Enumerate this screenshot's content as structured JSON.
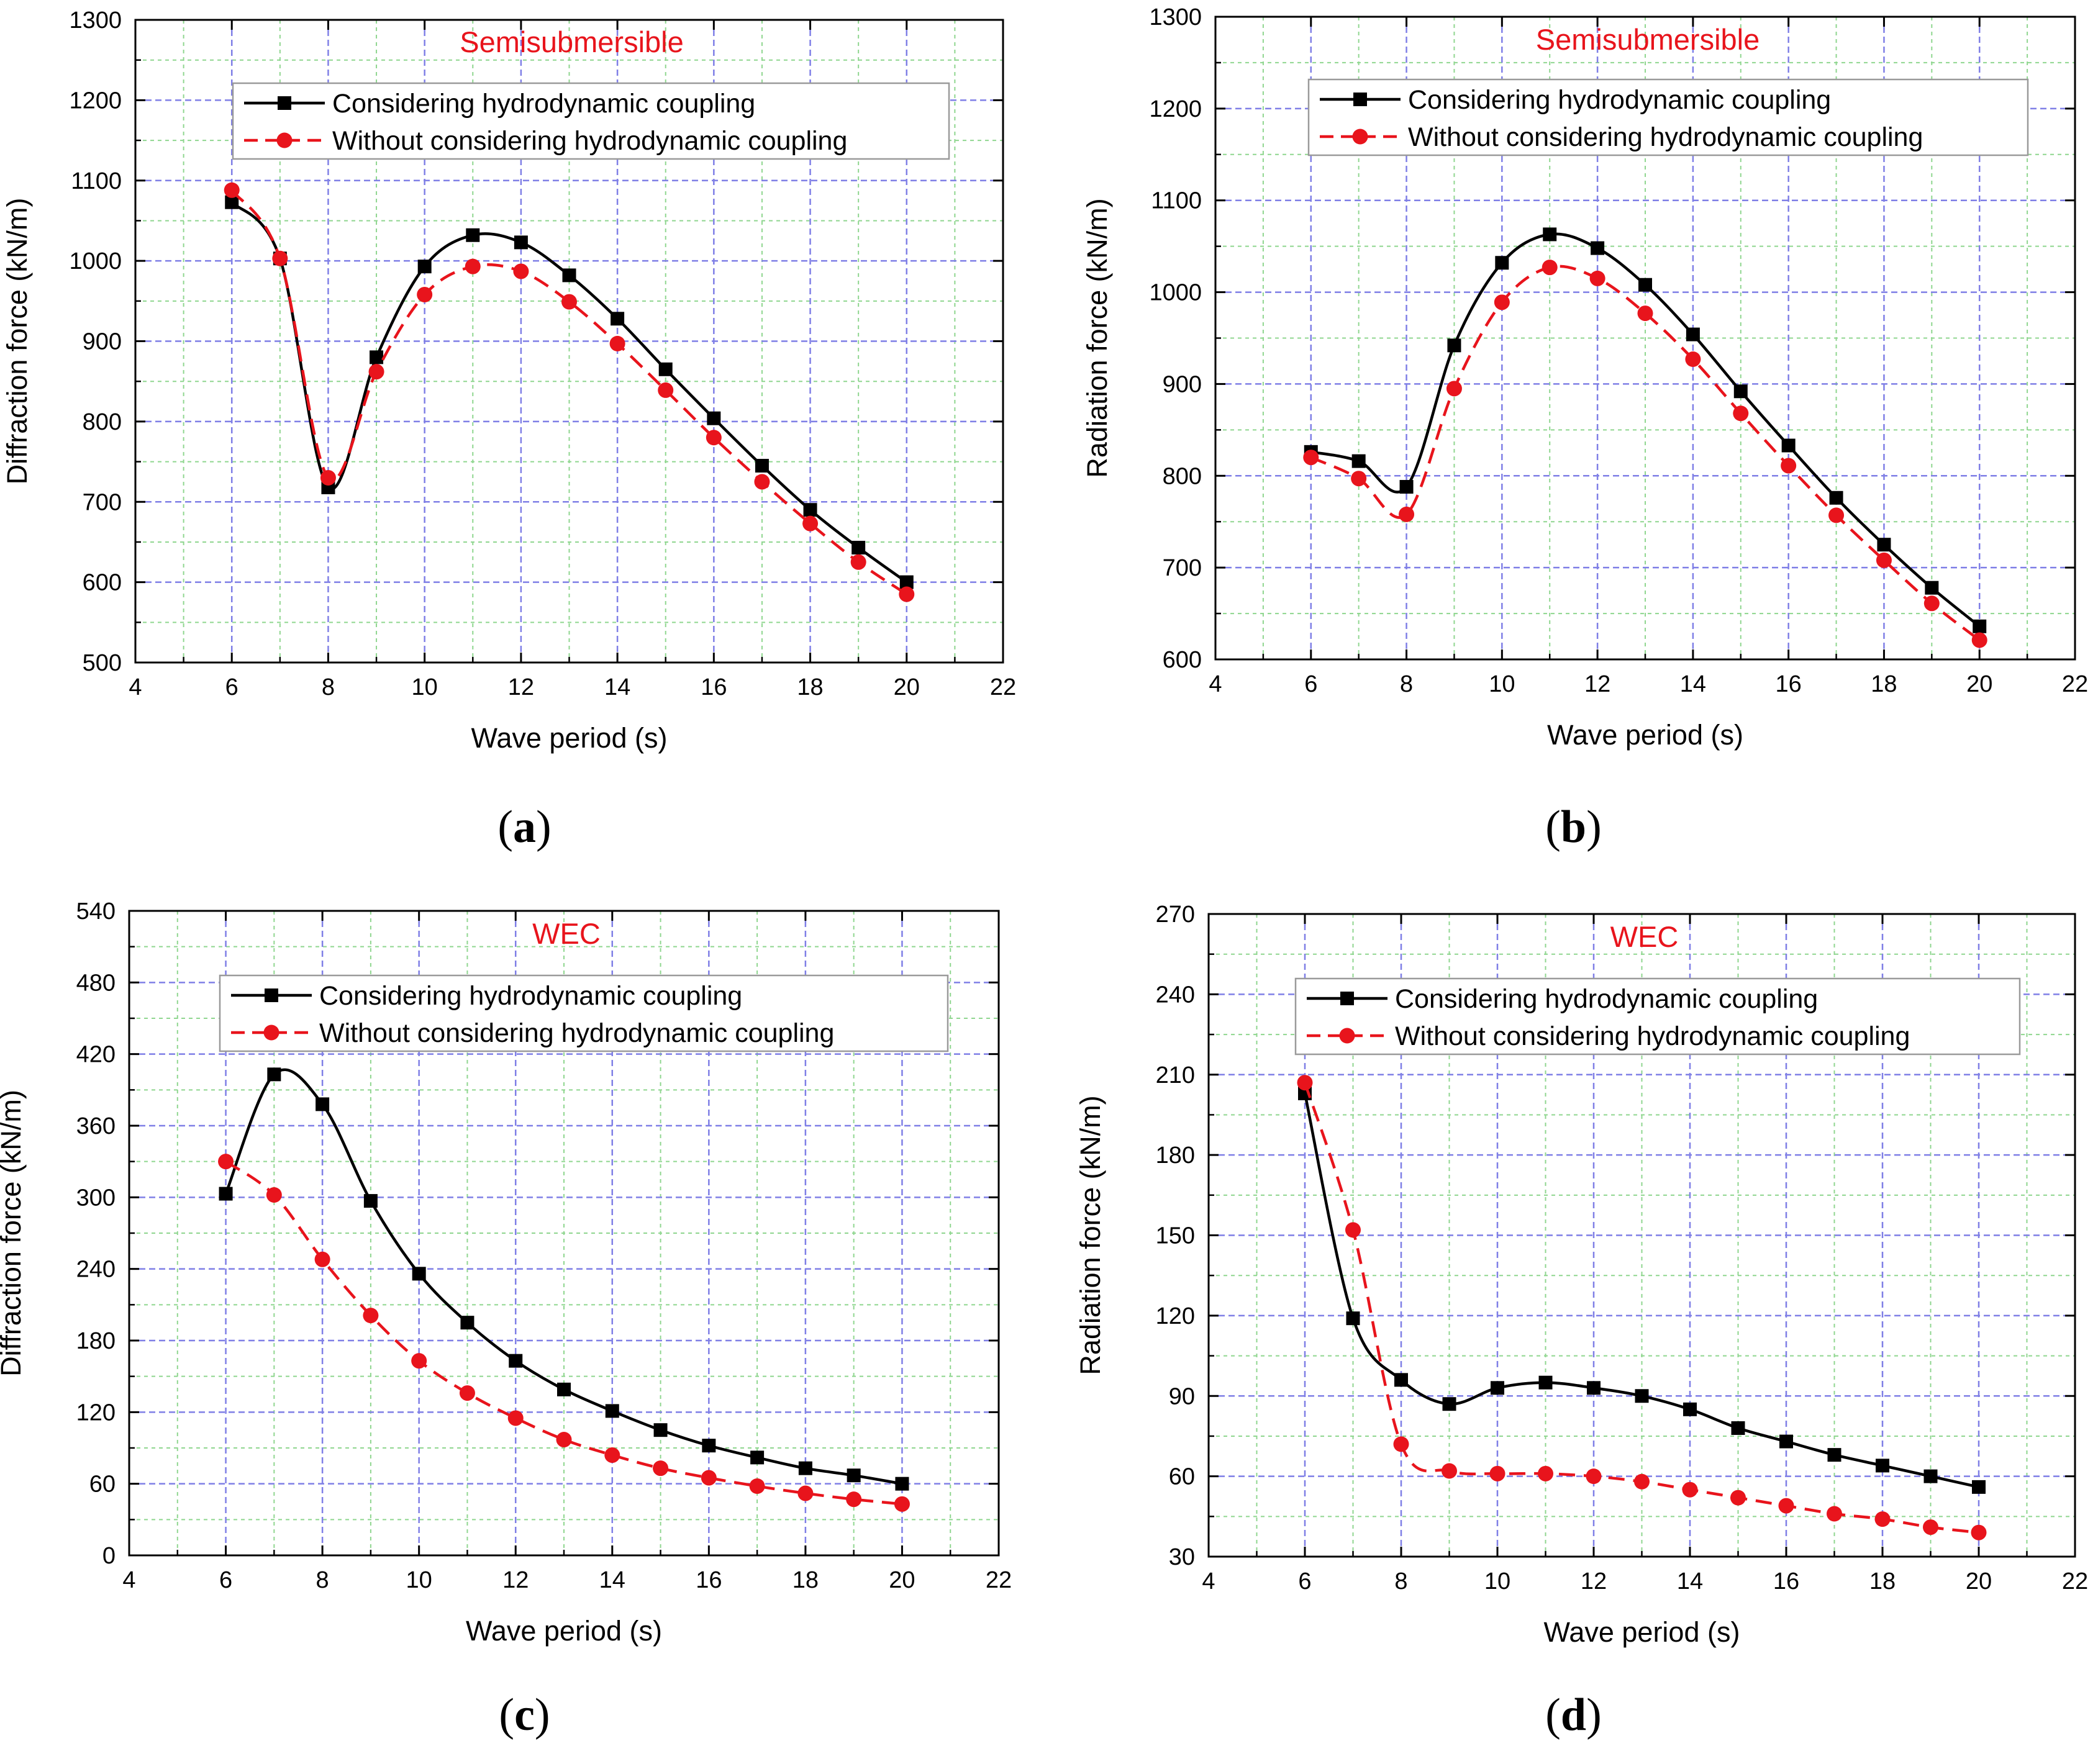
{
  "figure": {
    "background": "#ffffff"
  },
  "colors": {
    "coupled": "#000000",
    "uncoupled": "#e8141c",
    "title": "#e8141c",
    "grid_major": "#7f7fe6",
    "grid_minor": "#8fd68f"
  },
  "chart_data": [
    {
      "id": "a",
      "type": "line",
      "caption_letter": "a",
      "title": "Semisubmersible",
      "xlabel": "Wave period (s)",
      "ylabel": "Diffraction force (kN/m)",
      "xlim": [
        4,
        22
      ],
      "ylim": [
        500,
        1300
      ],
      "xticks": [
        4,
        6,
        8,
        10,
        12,
        14,
        16,
        18,
        20,
        22
      ],
      "yticks": [
        500,
        600,
        700,
        800,
        900,
        1000,
        1100,
        1200,
        1300
      ],
      "grid": true,
      "legend_position": "top",
      "x": [
        6,
        7,
        8,
        9,
        10,
        11,
        12,
        13,
        14,
        15,
        16,
        17,
        18,
        19,
        20
      ],
      "series": [
        {
          "name": "Considering hydrodynamic coupling",
          "marker": "square",
          "line": "solid",
          "color": "#000000",
          "values": [
            1073,
            1003,
            718,
            880,
            993,
            1032,
            1023,
            982,
            928,
            865,
            804,
            745,
            690,
            643,
            600
          ]
        },
        {
          "name": "Without considering hydrodynamic coupling",
          "marker": "circle",
          "line": "dashed",
          "color": "#e8141c",
          "values": [
            1088,
            1003,
            730,
            862,
            958,
            993,
            987,
            949,
            897,
            839,
            780,
            725,
            673,
            625,
            585
          ]
        }
      ]
    },
    {
      "id": "b",
      "type": "line",
      "caption_letter": "b",
      "title": "Semisubmersible",
      "xlabel": "Wave period (s)",
      "ylabel": "Radiation force (kN/m)",
      "xlim": [
        4,
        22
      ],
      "ylim": [
        600,
        1300
      ],
      "xticks": [
        4,
        6,
        8,
        10,
        12,
        14,
        16,
        18,
        20,
        22
      ],
      "yticks": [
        600,
        700,
        800,
        900,
        1000,
        1100,
        1200,
        1300
      ],
      "grid": true,
      "legend_position": "top",
      "x": [
        6,
        7,
        8,
        9,
        10,
        11,
        12,
        13,
        14,
        15,
        16,
        17,
        18,
        19,
        20
      ],
      "series": [
        {
          "name": "Considering hydrodynamic coupling",
          "marker": "square",
          "line": "solid",
          "color": "#000000",
          "values": [
            826,
            816,
            788,
            942,
            1032,
            1063,
            1048,
            1008,
            954,
            892,
            833,
            776,
            725,
            678,
            636
          ]
        },
        {
          "name": "Without considering hydrodynamic coupling",
          "marker": "circle",
          "line": "dashed",
          "color": "#e8141c",
          "values": [
            820,
            797,
            758,
            895,
            989,
            1027,
            1015,
            977,
            927,
            868,
            811,
            757,
            708,
            661,
            621
          ]
        }
      ]
    },
    {
      "id": "c",
      "type": "line",
      "caption_letter": "c",
      "title": "WEC",
      "xlabel": "Wave period (s)",
      "ylabel": "Diffraction force (kN/m)",
      "xlim": [
        4,
        22
      ],
      "ylim": [
        0,
        540
      ],
      "xticks": [
        4,
        6,
        8,
        10,
        12,
        14,
        16,
        18,
        20,
        22
      ],
      "yticks": [
        0,
        60,
        120,
        180,
        240,
        300,
        360,
        420,
        480,
        540
      ],
      "grid": true,
      "legend_position": "top",
      "x": [
        6,
        7,
        8,
        9,
        10,
        11,
        12,
        13,
        14,
        15,
        16,
        17,
        18,
        19,
        20
      ],
      "series": [
        {
          "name": "Considering hydrodynamic coupling",
          "marker": "square",
          "line": "solid",
          "color": "#000000",
          "values": [
            303,
            403,
            378,
            297,
            236,
            195,
            163,
            139,
            121,
            105,
            92,
            82,
            73,
            67,
            60
          ]
        },
        {
          "name": "Without considering hydrodynamic coupling",
          "marker": "circle",
          "line": "dashed",
          "color": "#e8141c",
          "values": [
            330,
            302,
            248,
            201,
            163,
            136,
            115,
            97,
            84,
            73,
            65,
            58,
            52,
            47,
            43
          ]
        }
      ]
    },
    {
      "id": "d",
      "type": "line",
      "caption_letter": "d",
      "title": "WEC",
      "xlabel": "Wave period (s)",
      "ylabel": "Radiation force (kN/m)",
      "xlim": [
        4,
        22
      ],
      "ylim": [
        30,
        270
      ],
      "xticks": [
        4,
        6,
        8,
        10,
        12,
        14,
        16,
        18,
        20,
        22
      ],
      "yticks": [
        30,
        60,
        90,
        120,
        150,
        180,
        210,
        240,
        270
      ],
      "grid": true,
      "legend_position": "top",
      "x": [
        6,
        7,
        8,
        9,
        10,
        11,
        12,
        13,
        14,
        15,
        16,
        17,
        18,
        19,
        20
      ],
      "series": [
        {
          "name": "Considering hydrodynamic coupling",
          "marker": "square",
          "line": "solid",
          "color": "#000000",
          "values": [
            203,
            119,
            96,
            87,
            93,
            95,
            93,
            90,
            85,
            78,
            73,
            68,
            64,
            60,
            56
          ]
        },
        {
          "name": "Without considering hydrodynamic coupling",
          "marker": "circle",
          "line": "dashed",
          "color": "#e8141c",
          "values": [
            207,
            152,
            72,
            62,
            61,
            61,
            60,
            58,
            55,
            52,
            49,
            46,
            44,
            41,
            39
          ]
        }
      ]
    }
  ]
}
